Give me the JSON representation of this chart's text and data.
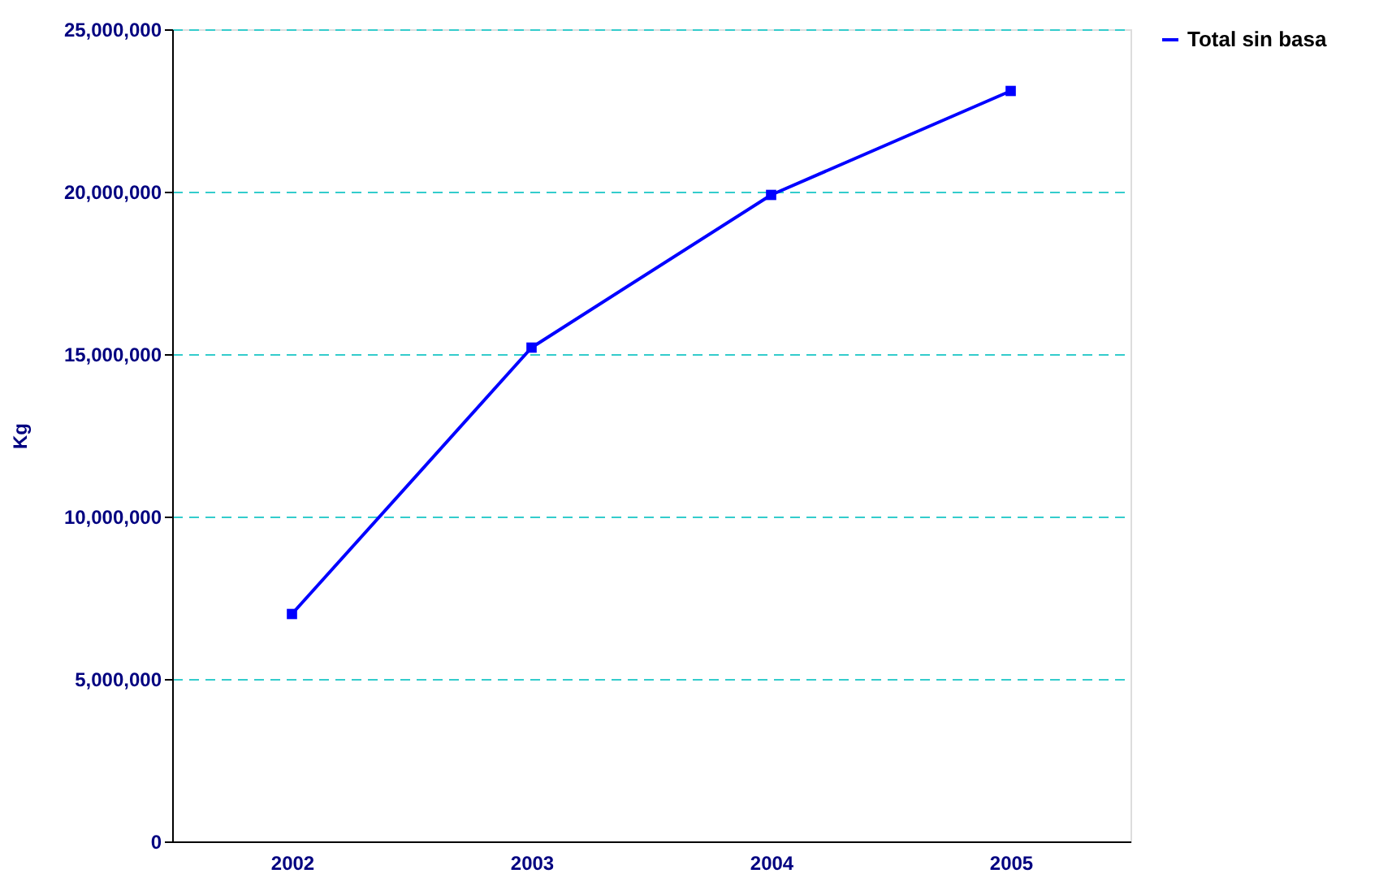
{
  "chart_data": {
    "type": "line",
    "ylabel": "Kg",
    "categories": [
      "2002",
      "2003",
      "2004",
      "2005"
    ],
    "series": [
      {
        "name": "Total sin basa",
        "color": "#0000ff",
        "values": [
          7000000,
          15200000,
          19900000,
          23100000
        ]
      }
    ],
    "ylim": [
      0,
      25000000
    ],
    "yticks": [
      {
        "value": 0,
        "label": "0"
      },
      {
        "value": 5000000,
        "label": "5,000,000"
      },
      {
        "value": 10000000,
        "label": "10,000,000"
      },
      {
        "value": 15000000,
        "label": "15,000,000"
      },
      {
        "value": 20000000,
        "label": "20,000,000"
      },
      {
        "value": 25000000,
        "label": "25,000,000"
      }
    ],
    "grid": "y",
    "legend": "right",
    "marker": "square",
    "line_style": "solid"
  }
}
